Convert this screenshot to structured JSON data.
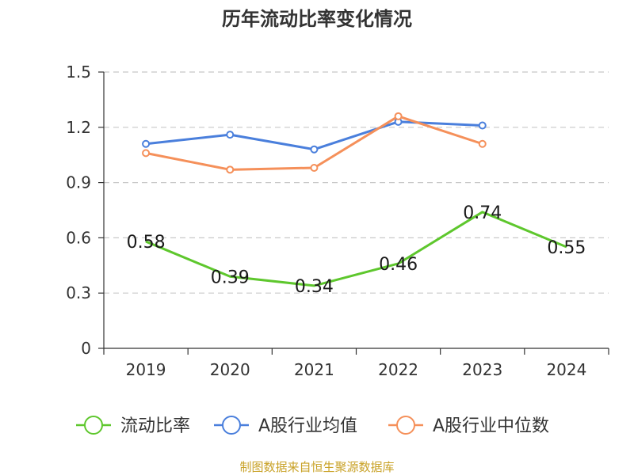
{
  "chart_data": {
    "type": "line",
    "title": "历年流动比率变化情况",
    "categories": [
      "2019",
      "2020",
      "2021",
      "2022",
      "2023",
      "2024"
    ],
    "y_ticks": [
      "0",
      "0.3",
      "0.6",
      "0.9",
      "1.2",
      "1.5"
    ],
    "ylim": [
      0,
      1.5
    ],
    "grid": true,
    "legend_position": "bottom",
    "series": [
      {
        "name": "流动比率",
        "color": "#5ec72d",
        "values": [
          0.58,
          0.39,
          0.34,
          0.46,
          0.74,
          0.55
        ],
        "labels": [
          "0.58",
          "0.39",
          "0.34",
          "0.46",
          "0.74",
          "0.55"
        ]
      },
      {
        "name": "A股行业均值",
        "color": "#4a7fdc",
        "values": [
          1.11,
          1.16,
          1.08,
          1.23,
          1.21,
          null
        ]
      },
      {
        "name": "A股行业中位数",
        "color": "#f5905a",
        "values": [
          1.06,
          0.97,
          0.98,
          1.26,
          1.11,
          null
        ]
      }
    ],
    "source": "制图数据来自恒生聚源数据库"
  }
}
